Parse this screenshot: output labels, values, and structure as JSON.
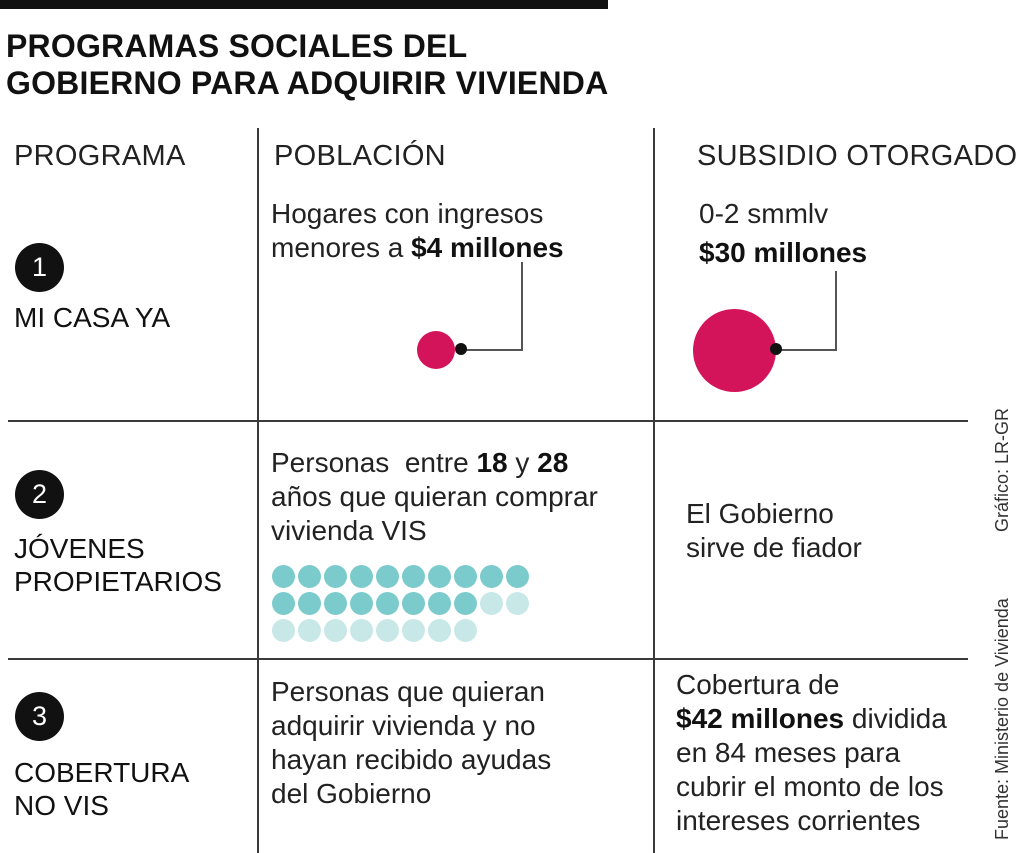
{
  "title": {
    "line1": "PROGRAMAS SOCIALES DEL",
    "line2": "GOBIERNO PARA ADQUIRIR VIVIENDA"
  },
  "headers": {
    "program": "PROGRAMA",
    "population": "POBLACIÓN",
    "subsidy": "SUBSIDIO OTORGADO"
  },
  "programs": [
    {
      "number": "1",
      "name_line1": "MI CASA YA",
      "population_line1": "Hogares con ingresos",
      "population_line2_pre": "menores a ",
      "population_line2_bold": "$4 millones",
      "subsidy_range": "0-2 smmlv",
      "subsidy_amount": "$30 millones"
    },
    {
      "number": "2",
      "name_line1": "JÓVENES",
      "name_line2": "PROPIETARIOS",
      "population_pre": "Personas  entre ",
      "population_bold1": "18",
      "population_mid": " y ",
      "population_bold2": "28",
      "population_line2": "años que quieran comprar",
      "population_line3": "vivienda VIS",
      "subsidy_line1": "El Gobierno",
      "subsidy_line2": "sirve de fiador",
      "people_rows": [
        {
          "full": 10,
          "light": 0
        },
        {
          "full": 8,
          "light": 2
        },
        {
          "full": 0,
          "light": 8
        }
      ]
    },
    {
      "number": "3",
      "name_line1": "COBERTURA",
      "name_line2": "NO VIS",
      "population_line1": "Personas que quieran",
      "population_line2": "adquirir vivienda y no",
      "population_line3": "hayan recibido ayudas",
      "population_line4": "del Gobierno",
      "subsidy_line1": "Cobertura de",
      "subsidy_line2_bold": "$42 millones",
      "subsidy_line2_rest": " dividida",
      "subsidy_line3": "en 84 meses para",
      "subsidy_line4": "cubrir el monto de los",
      "subsidy_line5": "intereses corrientes"
    }
  ],
  "credits": {
    "graphic": "Gráfico: LR-GR",
    "source": "Fuente: Ministerio de Vivienda"
  },
  "colors": {
    "pink": "#d4145a",
    "teal": "#7ccbcc",
    "teal_light": "#c8e8e8"
  }
}
